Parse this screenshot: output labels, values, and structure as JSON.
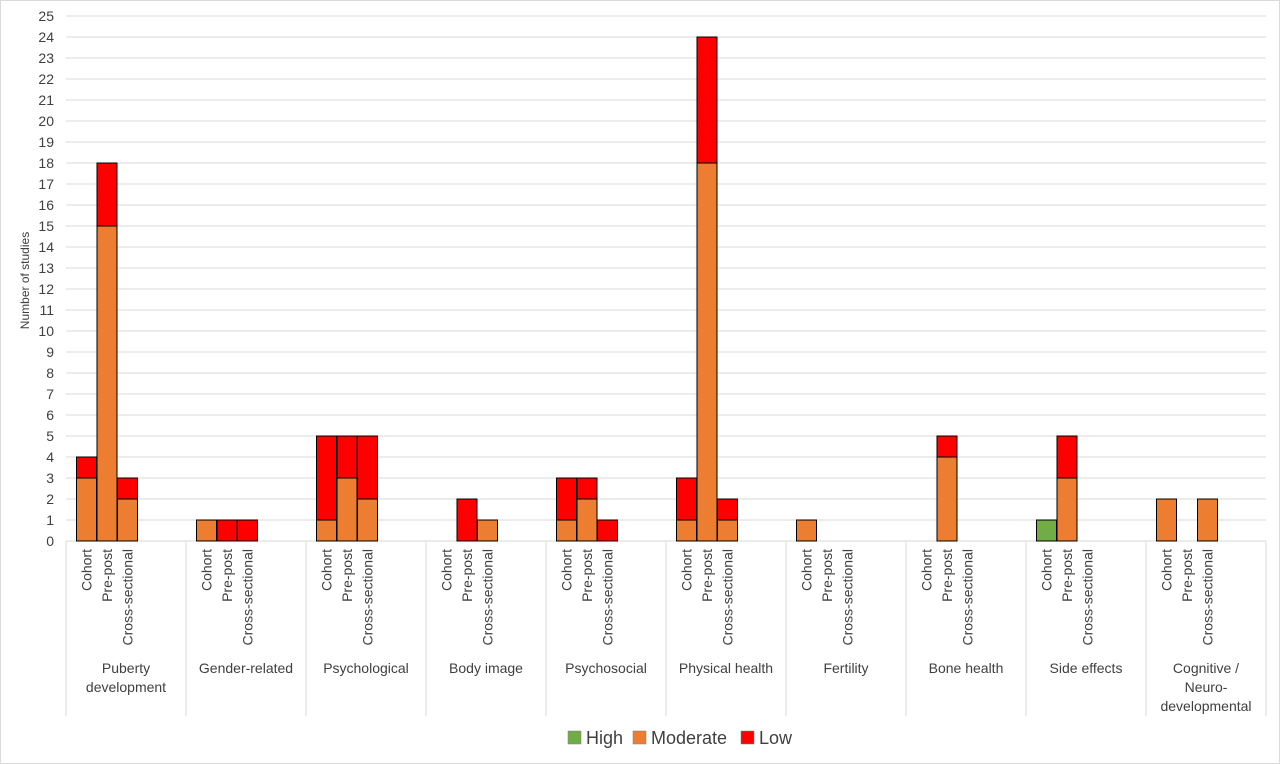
{
  "chart_data": {
    "type": "bar",
    "stacked": true,
    "ylabel": "Number of studies",
    "xlabel": "",
    "ylim": [
      0,
      25
    ],
    "ytick_step": 1,
    "grid": true,
    "legend_position": "bottom",
    "series": [
      {
        "name": "High",
        "color": "#70ad47"
      },
      {
        "name": "Moderate",
        "color": "#ed7d31"
      },
      {
        "name": "Low",
        "color": "#ff0000"
      }
    ],
    "groups": [
      {
        "label": [
          "Puberty",
          "development"
        ],
        "bars": [
          {
            "label": "Cohort",
            "values": [
              0,
              3,
              1
            ]
          },
          {
            "label": "Pre-post",
            "values": [
              0,
              15,
              3
            ]
          },
          {
            "label": "Cross-sectional",
            "values": [
              0,
              2,
              1
            ]
          }
        ]
      },
      {
        "label": [
          "Gender-related"
        ],
        "bars": [
          {
            "label": "Cohort",
            "values": [
              0,
              1,
              0
            ]
          },
          {
            "label": "Pre-post",
            "values": [
              0,
              0,
              1
            ]
          },
          {
            "label": "Cross-sectional",
            "values": [
              0,
              0,
              1
            ]
          }
        ]
      },
      {
        "label": [
          "Psychological"
        ],
        "bars": [
          {
            "label": "Cohort",
            "values": [
              0,
              1,
              4
            ]
          },
          {
            "label": "Pre-post",
            "values": [
              0,
              3,
              2
            ]
          },
          {
            "label": "Cross-sectional",
            "values": [
              0,
              2,
              3
            ]
          }
        ]
      },
      {
        "label": [
          "Body image"
        ],
        "bars": [
          {
            "label": "Cohort",
            "values": [
              0,
              0,
              0
            ]
          },
          {
            "label": "Pre-post",
            "values": [
              0,
              0,
              2
            ]
          },
          {
            "label": "Cross-sectional",
            "values": [
              0,
              1,
              0
            ]
          }
        ]
      },
      {
        "label": [
          "Psychosocial"
        ],
        "bars": [
          {
            "label": "Cohort",
            "values": [
              0,
              1,
              2
            ]
          },
          {
            "label": "Pre-post",
            "values": [
              0,
              2,
              1
            ]
          },
          {
            "label": "Cross-sectional",
            "values": [
              0,
              0,
              1
            ]
          }
        ]
      },
      {
        "label": [
          "Physical health"
        ],
        "bars": [
          {
            "label": "Cohort",
            "values": [
              0,
              1,
              2
            ]
          },
          {
            "label": "Pre-post",
            "values": [
              0,
              18,
              6
            ]
          },
          {
            "label": "Cross-sectional",
            "values": [
              0,
              1,
              1
            ]
          }
        ]
      },
      {
        "label": [
          "Fertility"
        ],
        "bars": [
          {
            "label": "Cohort",
            "values": [
              0,
              1,
              0
            ]
          },
          {
            "label": "Pre-post",
            "values": [
              0,
              0,
              0
            ]
          },
          {
            "label": "Cross-sectional",
            "values": [
              0,
              0,
              0
            ]
          }
        ]
      },
      {
        "label": [
          "Bone health"
        ],
        "bars": [
          {
            "label": "Cohort",
            "values": [
              0,
              0,
              0
            ]
          },
          {
            "label": "Pre-post",
            "values": [
              0,
              4,
              1
            ]
          },
          {
            "label": "Cross-sectional",
            "values": [
              0,
              0,
              0
            ]
          }
        ]
      },
      {
        "label": [
          "Side effects"
        ],
        "bars": [
          {
            "label": "Cohort",
            "values": [
              1,
              0,
              0
            ]
          },
          {
            "label": "Pre-post",
            "values": [
              0,
              3,
              2
            ]
          },
          {
            "label": "Cross-sectional",
            "values": [
              0,
              0,
              0
            ]
          }
        ]
      },
      {
        "label": [
          "Cognitive /",
          "Neuro-",
          "developmental"
        ],
        "bars": [
          {
            "label": "Cohort",
            "values": [
              0,
              2,
              0
            ]
          },
          {
            "label": "Pre-post",
            "values": [
              0,
              0,
              0
            ]
          },
          {
            "label": "Cross-sectional",
            "values": [
              0,
              2,
              0
            ]
          }
        ]
      }
    ]
  }
}
